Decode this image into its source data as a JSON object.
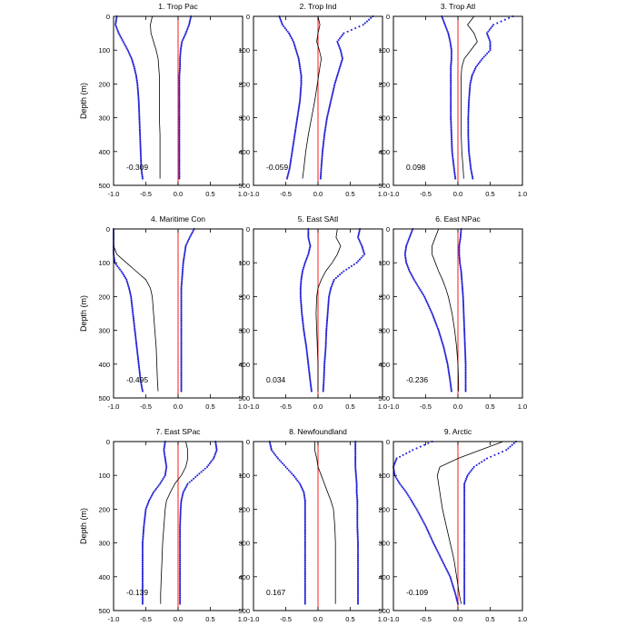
{
  "figure": {
    "ylabel": "Depth (m)",
    "xticks": [
      "-1.0",
      "-0.5",
      "0.0",
      "0.5",
      "1.0"
    ],
    "yticks": [
      "0",
      "100",
      "200",
      "300",
      "400",
      "500"
    ],
    "colors": {
      "profile": "#000000",
      "bounds": "#1f1fd6",
      "zero_line": "#ff0000",
      "frame": "#000000"
    }
  },
  "chart_data": [
    {
      "type": "line",
      "title": "1. Trop Pac",
      "annotation": "-0.309",
      "xlim": [
        -1.0,
        1.0
      ],
      "ylim": [
        500,
        0
      ],
      "ylabel": "Depth (m)",
      "depth": [
        0,
        25,
        50,
        75,
        100,
        125,
        150,
        175,
        200,
        250,
        300,
        350,
        400,
        450,
        480
      ],
      "series": [
        {
          "role": "profile",
          "values": [
            -0.4,
            -0.43,
            -0.42,
            -0.38,
            -0.34,
            -0.31,
            -0.3,
            -0.29,
            -0.29,
            -0.29,
            -0.29,
            -0.28,
            -0.28,
            -0.28,
            -0.28
          ]
        },
        {
          "role": "lower",
          "values": [
            -0.95,
            -0.97,
            -0.92,
            -0.85,
            -0.78,
            -0.72,
            -0.68,
            -0.65,
            -0.63,
            -0.61,
            -0.6,
            -0.59,
            -0.58,
            -0.57,
            -0.55
          ]
        },
        {
          "role": "upper",
          "values": [
            0.2,
            0.17,
            0.12,
            0.06,
            0.04,
            0.03,
            0.03,
            0.02,
            0.02,
            0.02,
            0.02,
            0.02,
            0.02,
            0.02,
            0.02
          ]
        }
      ]
    },
    {
      "type": "line",
      "title": "2. Trop Ind",
      "annotation": "-0.059",
      "xlim": [
        -1.0,
        1.0
      ],
      "ylim": [
        500,
        0
      ],
      "ylabel": "",
      "depth": [
        0,
        25,
        50,
        75,
        100,
        125,
        150,
        175,
        200,
        250,
        300,
        350,
        400,
        450,
        480
      ],
      "series": [
        {
          "role": "profile",
          "values": [
            0.0,
            0.03,
            0.0,
            -0.02,
            0.02,
            0.05,
            0.03,
            0.01,
            -0.01,
            -0.05,
            -0.1,
            -0.15,
            -0.19,
            -0.22,
            -0.24
          ]
        },
        {
          "role": "lower",
          "values": [
            -0.6,
            -0.55,
            -0.45,
            -0.38,
            -0.34,
            -0.3,
            -0.28,
            -0.26,
            -0.26,
            -0.28,
            -0.32,
            -0.36,
            -0.4,
            -0.44,
            -0.48
          ]
        },
        {
          "role": "upper",
          "values": [
            0.85,
            0.7,
            0.4,
            0.3,
            0.35,
            0.38,
            0.34,
            0.3,
            0.26,
            0.2,
            0.14,
            0.1,
            0.07,
            0.05,
            0.04
          ]
        }
      ]
    },
    {
      "type": "line",
      "title": "3. Trop Atl",
      "annotation": "0.098",
      "xlim": [
        -1.0,
        1.0
      ],
      "ylim": [
        500,
        0
      ],
      "ylabel": "",
      "depth": [
        0,
        25,
        50,
        75,
        100,
        125,
        150,
        175,
        200,
        250,
        300,
        350,
        400,
        450,
        480
      ],
      "series": [
        {
          "role": "profile",
          "values": [
            0.25,
            0.15,
            0.25,
            0.3,
            0.2,
            0.1,
            0.06,
            0.05,
            0.05,
            0.05,
            0.05,
            0.05,
            0.06,
            0.08,
            0.09
          ]
        },
        {
          "role": "lower",
          "values": [
            -0.25,
            -0.2,
            -0.15,
            -0.12,
            -0.1,
            -0.1,
            -0.11,
            -0.11,
            -0.11,
            -0.11,
            -0.11,
            -0.1,
            -0.09,
            -0.06,
            -0.04
          ]
        },
        {
          "role": "upper",
          "values": [
            0.85,
            0.55,
            0.45,
            0.5,
            0.5,
            0.38,
            0.28,
            0.22,
            0.19,
            0.17,
            0.16,
            0.16,
            0.17,
            0.2,
            0.23
          ]
        }
      ]
    },
    {
      "type": "line",
      "title": "4. Maritime Con",
      "annotation": "-0.495",
      "xlim": [
        -1.0,
        1.0
      ],
      "ylim": [
        500,
        0
      ],
      "ylabel": "Depth (m)",
      "depth": [
        0,
        25,
        50,
        75,
        100,
        125,
        150,
        175,
        200,
        250,
        300,
        350,
        400,
        450,
        480
      ],
      "series": [
        {
          "role": "profile",
          "values": [
            -1.0,
            -1.0,
            -1.0,
            -0.95,
            -0.8,
            -0.65,
            -0.5,
            -0.43,
            -0.4,
            -0.38,
            -0.36,
            -0.34,
            -0.33,
            -0.32,
            -0.31
          ]
        },
        {
          "role": "lower",
          "values": [
            -1.0,
            -1.0,
            -1.0,
            -1.0,
            -0.98,
            -0.88,
            -0.8,
            -0.76,
            -0.73,
            -0.7,
            -0.67,
            -0.64,
            -0.61,
            -0.58,
            -0.55
          ]
        },
        {
          "role": "upper",
          "values": [
            0.25,
            0.18,
            0.12,
            0.1,
            0.08,
            0.07,
            0.06,
            0.05,
            0.05,
            0.05,
            0.05,
            0.05,
            0.05,
            0.05,
            0.05
          ]
        }
      ]
    },
    {
      "type": "line",
      "title": "5. East SAtl",
      "annotation": "0.034",
      "xlim": [
        -1.0,
        1.0
      ],
      "ylim": [
        500,
        0
      ],
      "ylabel": "",
      "depth": [
        0,
        25,
        50,
        75,
        100,
        125,
        150,
        175,
        200,
        250,
        300,
        350,
        400,
        450,
        480
      ],
      "series": [
        {
          "role": "profile",
          "values": [
            0.3,
            0.28,
            0.35,
            0.3,
            0.22,
            0.12,
            0.05,
            0.0,
            -0.02,
            -0.03,
            -0.02,
            -0.01,
            0.0,
            0.0,
            0.0
          ]
        },
        {
          "role": "lower",
          "values": [
            -0.15,
            -0.15,
            -0.12,
            -0.15,
            -0.2,
            -0.24,
            -0.26,
            -0.27,
            -0.27,
            -0.25,
            -0.22,
            -0.18,
            -0.15,
            -0.12,
            -0.1
          ]
        },
        {
          "role": "upper",
          "values": [
            0.65,
            0.62,
            0.68,
            0.72,
            0.6,
            0.4,
            0.25,
            0.2,
            0.17,
            0.15,
            0.13,
            0.12,
            0.1,
            0.09,
            0.08
          ]
        }
      ]
    },
    {
      "type": "line",
      "title": "6. East NPac",
      "annotation": "-0.236",
      "xlim": [
        -1.0,
        1.0
      ],
      "ylim": [
        500,
        0
      ],
      "ylabel": "",
      "depth": [
        0,
        25,
        50,
        75,
        100,
        125,
        150,
        175,
        200,
        250,
        300,
        350,
        400,
        450,
        480
      ],
      "series": [
        {
          "role": "profile",
          "values": [
            -0.3,
            -0.35,
            -0.4,
            -0.4,
            -0.35,
            -0.3,
            -0.24,
            -0.19,
            -0.15,
            -0.09,
            -0.05,
            -0.02,
            0.0,
            0.01,
            0.01
          ]
        },
        {
          "role": "lower",
          "values": [
            -0.7,
            -0.75,
            -0.8,
            -0.82,
            -0.8,
            -0.75,
            -0.68,
            -0.6,
            -0.52,
            -0.4,
            -0.3,
            -0.22,
            -0.16,
            -0.12,
            -0.1
          ]
        },
        {
          "role": "upper",
          "values": [
            0.05,
            0.04,
            0.02,
            0.02,
            0.03,
            0.05,
            0.06,
            0.07,
            0.08,
            0.09,
            0.1,
            0.11,
            0.12,
            0.12,
            0.12
          ]
        }
      ]
    },
    {
      "type": "line",
      "title": "7. East SPac",
      "annotation": "-0.139",
      "xlim": [
        -1.0,
        1.0
      ],
      "ylim": [
        500,
        0
      ],
      "ylabel": "Depth (m)",
      "depth": [
        0,
        25,
        50,
        75,
        100,
        125,
        150,
        175,
        200,
        250,
        300,
        350,
        400,
        450,
        480
      ],
      "series": [
        {
          "role": "profile",
          "values": [
            0.12,
            0.15,
            0.15,
            0.12,
            0.05,
            -0.05,
            -0.12,
            -0.18,
            -0.2,
            -0.22,
            -0.24,
            -0.25,
            -0.26,
            -0.27,
            -0.27
          ]
        },
        {
          "role": "lower",
          "values": [
            -0.2,
            -0.22,
            -0.2,
            -0.18,
            -0.2,
            -0.28,
            -0.38,
            -0.45,
            -0.5,
            -0.53,
            -0.55,
            -0.55,
            -0.55,
            -0.55,
            -0.55
          ]
        },
        {
          "role": "upper",
          "values": [
            0.58,
            0.6,
            0.55,
            0.45,
            0.3,
            0.15,
            0.08,
            0.05,
            0.04,
            0.03,
            0.03,
            0.03,
            0.03,
            0.03,
            0.03
          ]
        }
      ]
    },
    {
      "type": "line",
      "title": "8. Newfoundland",
      "annotation": "0.167",
      "xlim": [
        -1.0,
        1.0
      ],
      "ylim": [
        500,
        0
      ],
      "ylabel": "",
      "depth": [
        0,
        25,
        50,
        75,
        100,
        125,
        150,
        175,
        200,
        250,
        300,
        350,
        400,
        450,
        480
      ],
      "series": [
        {
          "role": "profile",
          "values": [
            -0.05,
            -0.05,
            -0.02,
            0.0,
            0.05,
            0.1,
            0.15,
            0.2,
            0.24,
            0.26,
            0.27,
            0.27,
            0.27,
            0.27,
            0.27
          ]
        },
        {
          "role": "lower",
          "values": [
            -0.75,
            -0.72,
            -0.62,
            -0.5,
            -0.38,
            -0.28,
            -0.22,
            -0.2,
            -0.2,
            -0.2,
            -0.2,
            -0.2,
            -0.2,
            -0.2,
            -0.2
          ]
        },
        {
          "role": "upper",
          "values": [
            0.58,
            0.58,
            0.58,
            0.58,
            0.59,
            0.6,
            0.6,
            0.61,
            0.61,
            0.61,
            0.62,
            0.62,
            0.62,
            0.62,
            0.62
          ]
        }
      ]
    },
    {
      "type": "line",
      "title": "9. Arctic",
      "annotation": "-0.109",
      "xlim": [
        -1.0,
        1.0
      ],
      "ylim": [
        500,
        0
      ],
      "ylabel": "",
      "depth": [
        0,
        25,
        50,
        75,
        100,
        125,
        150,
        175,
        200,
        250,
        300,
        350,
        400,
        450,
        480
      ],
      "series": [
        {
          "role": "profile",
          "values": [
            0.7,
            0.35,
            0.0,
            -0.28,
            -0.32,
            -0.3,
            -0.28,
            -0.26,
            -0.24,
            -0.18,
            -0.12,
            -0.06,
            -0.02,
            0.02,
            0.05
          ]
        },
        {
          "role": "lower",
          "values": [
            -0.4,
            -0.7,
            -0.95,
            -1.0,
            -0.98,
            -0.9,
            -0.8,
            -0.72,
            -0.64,
            -0.5,
            -0.38,
            -0.25,
            -0.12,
            -0.04,
            0.0
          ]
        },
        {
          "role": "upper",
          "values": [
            0.9,
            0.75,
            0.45,
            0.25,
            0.15,
            0.1,
            0.1,
            0.1,
            0.1,
            0.1,
            0.1,
            0.1,
            0.1,
            0.1,
            0.1
          ]
        }
      ]
    }
  ]
}
